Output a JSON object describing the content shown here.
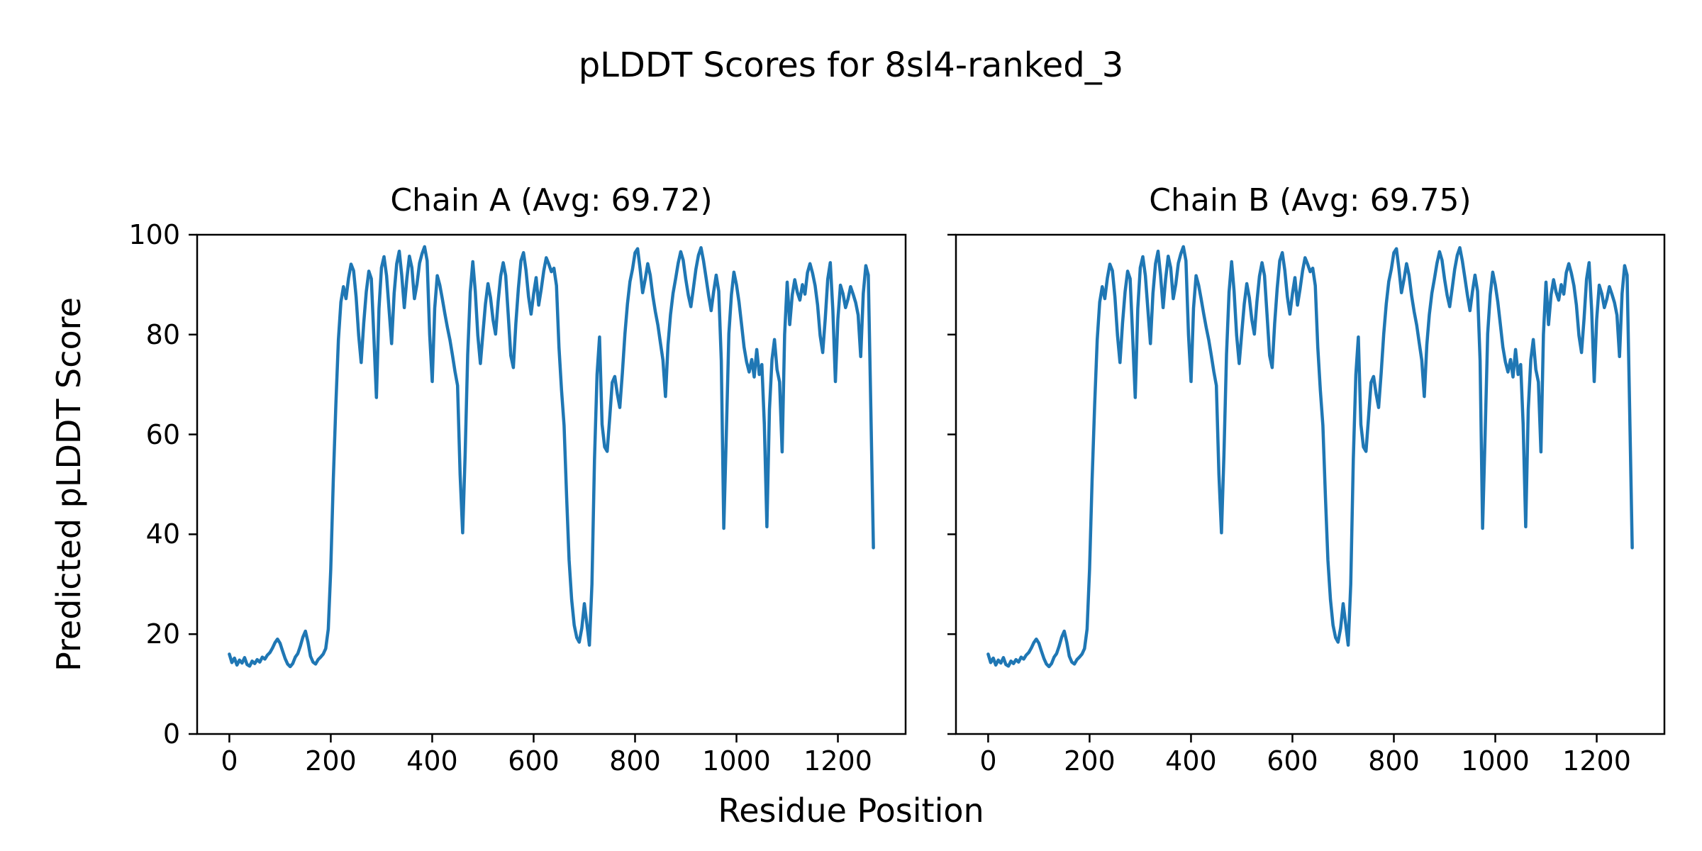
{
  "figure": {
    "title": "pLDDT Scores for 8sl4-ranked_3",
    "xlabel": "Residue Position",
    "ylabel": "Predicted pLDDT Score",
    "background_color": "#ffffff",
    "text_color": "#000000",
    "spine_color": "#000000",
    "line_color": "#1f77b4"
  },
  "chart_data": [
    {
      "type": "line",
      "title": "Chain A (Avg: 69.72)",
      "chain": "A",
      "avg": 69.72,
      "xlabel": "Residue Position",
      "ylabel": "Predicted pLDDT Score",
      "xlim": [
        -63.5,
        1333.5
      ],
      "ylim": [
        0,
        100
      ],
      "xticks": [
        0,
        200,
        400,
        600,
        800,
        1000,
        1200
      ],
      "yticks": [
        0,
        20,
        40,
        60,
        80,
        100
      ],
      "show_ytick_labels": true,
      "grid": false,
      "legend": null,
      "series": [
        {
          "name": "pLDDT",
          "color": "#1f77b4",
          "x_start": 0,
          "x_step": 5,
          "values": [
            16.0,
            14.3,
            15.2,
            13.8,
            14.8,
            14.2,
            15.3,
            13.9,
            13.6,
            14.6,
            14.1,
            14.9,
            14.4,
            15.4,
            15.0,
            15.8,
            16.3,
            17.2,
            18.3,
            19.0,
            18.2,
            16.6,
            15.1,
            14.0,
            13.5,
            14.1,
            15.4,
            16.1,
            17.6,
            19.4,
            20.6,
            18.4,
            15.6,
            14.4,
            14.0,
            14.9,
            15.4,
            16.0,
            17.1,
            21.0,
            33.0,
            51.0,
            66.0,
            79.0,
            86.5,
            89.6,
            87.2,
            91.3,
            94.1,
            92.8,
            87.5,
            79.8,
            74.4,
            82.3,
            88.6,
            92.7,
            91.2,
            79.6,
            67.4,
            85.2,
            93.4,
            95.6,
            91.8,
            84.9,
            78.2,
            88.3,
            94.2,
            96.7,
            91.9,
            85.4,
            91.2,
            95.7,
            93.4,
            87.2,
            90.1,
            94.3,
            96.2,
            97.6,
            94.8,
            80.0,
            70.6,
            85.3,
            91.8,
            89.9,
            87.1,
            84.2,
            81.4,
            78.9,
            75.8,
            72.6,
            69.8,
            52.0,
            40.3,
            56.0,
            76.0,
            88.5,
            94.6,
            88.7,
            79.8,
            74.2,
            80.3,
            86.1,
            90.2,
            87.4,
            82.9,
            80.1,
            86.6,
            91.7,
            94.4,
            91.8,
            83.9,
            75.8,
            73.4,
            82.2,
            89.3,
            94.8,
            96.4,
            92.9,
            87.6,
            84.1,
            88.2,
            91.4,
            85.9,
            89.1,
            92.8,
            95.4,
            94.1,
            92.6,
            93.3,
            89.8,
            77.5,
            68.9,
            61.8,
            47.5,
            34.8,
            26.9,
            21.8,
            19.3,
            18.4,
            21.2,
            26.1,
            22.0,
            17.8,
            30.0,
            55.0,
            72.0,
            79.5,
            62.0,
            57.5,
            56.6,
            63.2,
            70.4,
            71.6,
            68.1,
            65.4,
            72.3,
            80.1,
            86.2,
            90.6,
            93.1,
            96.4,
            97.2,
            93.2,
            88.4,
            91.1,
            94.2,
            91.9,
            87.8,
            84.6,
            81.9,
            78.4,
            74.9,
            67.6,
            78.0,
            84.0,
            88.3,
            91.2,
            94.3,
            96.6,
            94.9,
            91.1,
            87.9,
            85.6,
            89.2,
            93.1,
            95.9,
            97.4,
            94.8,
            91.4,
            87.9,
            84.8,
            88.6,
            91.9,
            88.7,
            74.8,
            41.2,
            60.1,
            80.2,
            88.0,
            92.5,
            90.0,
            86.5,
            82.0,
            77.5,
            74.5,
            72.5,
            75.0,
            71.5,
            77.0,
            72.0,
            74.0,
            62.0,
            41.5,
            65.0,
            75.0,
            79.0,
            73.0,
            70.5,
            56.5,
            80.0,
            90.5,
            82.0,
            88.0,
            91.0,
            88.5,
            86.9,
            90.0,
            88.1,
            92.4,
            94.2,
            92.3,
            89.8,
            85.9,
            79.8,
            76.4,
            83.2,
            91.1,
            94.4,
            84.9,
            70.6,
            83.1,
            89.9,
            88.2,
            85.4,
            87.1,
            89.6,
            88.1,
            86.4,
            83.9,
            75.6,
            88.2,
            93.8,
            91.9,
            65.0,
            37.3
          ]
        }
      ]
    },
    {
      "type": "line",
      "title": "Chain B (Avg: 69.75)",
      "chain": "B",
      "avg": 69.75,
      "xlabel": "Residue Position",
      "ylabel": "Predicted pLDDT Score",
      "xlim": [
        -63.5,
        1333.5
      ],
      "ylim": [
        0,
        100
      ],
      "xticks": [
        0,
        200,
        400,
        600,
        800,
        1000,
        1200
      ],
      "yticks": [
        0,
        20,
        40,
        60,
        80,
        100
      ],
      "show_ytick_labels": false,
      "grid": false,
      "legend": null,
      "series": [
        {
          "name": "pLDDT",
          "color": "#1f77b4",
          "x_start": 0,
          "x_step": 5,
          "values": [
            16.0,
            14.3,
            15.2,
            13.8,
            14.8,
            14.2,
            15.3,
            13.9,
            13.6,
            14.6,
            14.1,
            14.9,
            14.4,
            15.4,
            15.0,
            15.8,
            16.3,
            17.2,
            18.3,
            19.0,
            18.2,
            16.6,
            15.1,
            14.0,
            13.5,
            14.1,
            15.4,
            16.1,
            17.6,
            19.4,
            20.6,
            18.4,
            15.6,
            14.4,
            14.0,
            14.9,
            15.4,
            16.0,
            17.1,
            21.0,
            33.0,
            51.0,
            66.0,
            79.0,
            86.5,
            89.6,
            87.2,
            91.3,
            94.1,
            92.8,
            87.5,
            79.8,
            74.4,
            82.3,
            88.6,
            92.7,
            91.2,
            79.6,
            67.4,
            85.2,
            93.4,
            95.6,
            91.8,
            84.9,
            78.2,
            88.3,
            94.2,
            96.7,
            91.9,
            85.4,
            91.2,
            95.7,
            93.4,
            87.2,
            90.1,
            94.3,
            96.2,
            97.6,
            94.8,
            80.0,
            70.6,
            85.3,
            91.8,
            89.9,
            87.1,
            84.2,
            81.4,
            78.9,
            75.8,
            72.6,
            69.8,
            52.0,
            40.3,
            56.0,
            76.0,
            88.5,
            94.6,
            88.7,
            79.8,
            74.2,
            80.3,
            86.1,
            90.2,
            87.4,
            82.9,
            80.1,
            86.6,
            91.7,
            94.4,
            91.8,
            83.9,
            75.8,
            73.4,
            82.2,
            89.3,
            94.8,
            96.4,
            92.9,
            87.6,
            84.1,
            88.2,
            91.4,
            85.9,
            89.1,
            92.8,
            95.4,
            94.1,
            92.6,
            93.3,
            89.8,
            77.5,
            68.9,
            61.8,
            47.5,
            34.8,
            26.9,
            21.8,
            19.3,
            18.4,
            21.2,
            26.1,
            22.0,
            17.8,
            30.0,
            55.0,
            72.0,
            79.5,
            62.0,
            57.5,
            56.6,
            63.2,
            70.4,
            71.6,
            68.1,
            65.4,
            72.3,
            80.1,
            86.2,
            90.6,
            93.1,
            96.4,
            97.2,
            93.2,
            88.4,
            91.1,
            94.2,
            91.9,
            87.8,
            84.6,
            81.9,
            78.4,
            74.9,
            67.6,
            78.0,
            84.0,
            88.3,
            91.2,
            94.3,
            96.6,
            94.9,
            91.1,
            87.9,
            85.6,
            89.2,
            93.1,
            95.9,
            97.4,
            94.8,
            91.4,
            87.9,
            84.8,
            88.6,
            91.9,
            88.7,
            74.8,
            41.2,
            60.1,
            80.2,
            88.0,
            92.5,
            90.0,
            86.5,
            82.0,
            77.5,
            74.5,
            72.5,
            75.0,
            71.5,
            77.0,
            72.0,
            74.0,
            62.0,
            41.5,
            65.0,
            75.0,
            79.0,
            73.0,
            70.5,
            56.5,
            80.0,
            90.5,
            82.0,
            88.0,
            91.0,
            88.5,
            86.9,
            90.0,
            88.1,
            92.4,
            94.2,
            92.3,
            89.8,
            85.9,
            79.8,
            76.4,
            83.2,
            91.1,
            94.4,
            84.9,
            70.6,
            83.1,
            89.9,
            88.2,
            85.4,
            87.1,
            89.6,
            88.1,
            86.4,
            83.9,
            75.6,
            88.2,
            93.8,
            91.9,
            65.0,
            37.3
          ]
        }
      ]
    }
  ]
}
